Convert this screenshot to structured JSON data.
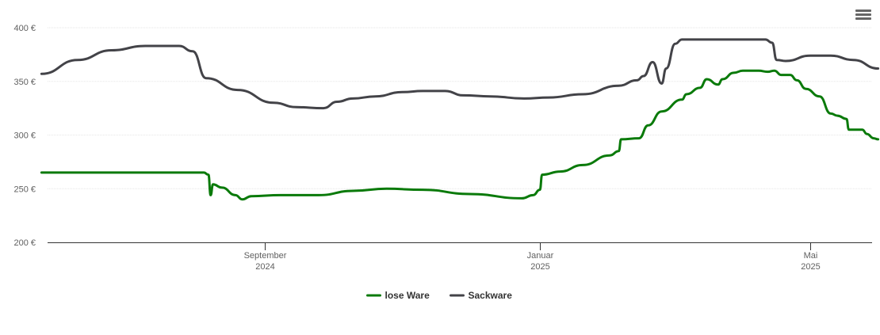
{
  "chart_data": {
    "type": "line",
    "title": "",
    "xlabel": "",
    "ylabel": "",
    "ylim": [
      200,
      400
    ],
    "y_ticks": [
      {
        "value": 200,
        "label": "200 €"
      },
      {
        "value": 250,
        "label": "250 €"
      },
      {
        "value": 300,
        "label": "300 €"
      },
      {
        "value": 350,
        "label": "350 €"
      },
      {
        "value": 400,
        "label": "400 €"
      }
    ],
    "x_range": [
      "2024-05-25",
      "2025-05-31"
    ],
    "x_ticks": [
      {
        "date": "2024-09-01",
        "label": "September",
        "sublabel": "2024"
      },
      {
        "date": "2025-01-01",
        "label": "Januar",
        "sublabel": "2025"
      },
      {
        "date": "2025-05-01",
        "label": "Mai",
        "sublabel": "2025"
      }
    ],
    "grid": true,
    "legend_position": "bottom-center",
    "series": [
      {
        "name": "lose Ware",
        "color": "#0a7a0a",
        "points": [
          [
            "2024-05-25",
            265
          ],
          [
            "2024-08-05",
            265
          ],
          [
            "2024-08-07",
            263
          ],
          [
            "2024-08-08",
            244
          ],
          [
            "2024-08-09",
            254
          ],
          [
            "2024-08-13",
            251
          ],
          [
            "2024-08-19",
            244
          ],
          [
            "2024-08-22",
            240
          ],
          [
            "2024-08-26",
            243
          ],
          [
            "2024-09-08",
            244
          ],
          [
            "2024-09-25",
            244
          ],
          [
            "2024-10-10",
            248
          ],
          [
            "2024-10-25",
            250
          ],
          [
            "2024-11-10",
            249
          ],
          [
            "2024-12-01",
            245
          ],
          [
            "2024-12-24",
            241
          ],
          [
            "2024-12-29",
            244
          ],
          [
            "2025-01-01",
            249
          ],
          [
            "2025-01-02",
            263
          ],
          [
            "2025-01-10",
            266
          ],
          [
            "2025-01-20",
            272
          ],
          [
            "2025-02-01",
            281
          ],
          [
            "2025-02-05",
            285
          ],
          [
            "2025-02-06",
            296
          ],
          [
            "2025-02-14",
            297
          ],
          [
            "2025-02-18",
            309
          ],
          [
            "2025-02-24",
            322
          ],
          [
            "2025-03-05",
            333
          ],
          [
            "2025-03-07",
            338
          ],
          [
            "2025-03-13",
            344
          ],
          [
            "2025-03-16",
            352
          ],
          [
            "2025-03-21",
            347
          ],
          [
            "2025-03-23",
            352
          ],
          [
            "2025-03-28",
            358
          ],
          [
            "2025-04-01",
            360
          ],
          [
            "2025-04-08",
            360
          ],
          [
            "2025-04-12",
            359
          ],
          [
            "2025-04-15",
            360
          ],
          [
            "2025-04-18",
            356
          ],
          [
            "2025-04-22",
            356
          ],
          [
            "2025-04-25",
            351
          ],
          [
            "2025-04-29",
            343
          ],
          [
            "2025-05-05",
            336
          ],
          [
            "2025-05-10",
            320
          ],
          [
            "2025-05-13",
            318
          ],
          [
            "2025-05-17",
            315
          ],
          [
            "2025-05-18",
            305
          ],
          [
            "2025-05-19",
            305
          ],
          [
            "2025-05-24",
            305
          ],
          [
            "2025-05-26",
            301
          ],
          [
            "2025-05-29",
            297
          ],
          [
            "2025-05-31",
            296
          ]
        ]
      },
      {
        "name": "Sackware",
        "color": "#434348",
        "points": [
          [
            "2024-05-25",
            357
          ],
          [
            "2024-06-10",
            370
          ],
          [
            "2024-06-25",
            379
          ],
          [
            "2024-07-10",
            383
          ],
          [
            "2024-07-25",
            383
          ],
          [
            "2024-07-31",
            378
          ],
          [
            "2024-08-06",
            353
          ],
          [
            "2024-08-20",
            342
          ],
          [
            "2024-09-05",
            330
          ],
          [
            "2024-09-15",
            326
          ],
          [
            "2024-09-27",
            325
          ],
          [
            "2024-10-03",
            331
          ],
          [
            "2024-10-10",
            334
          ],
          [
            "2024-10-20",
            336
          ],
          [
            "2024-11-01",
            340
          ],
          [
            "2024-11-10",
            341
          ],
          [
            "2024-11-20",
            341
          ],
          [
            "2024-11-28",
            337
          ],
          [
            "2024-12-10",
            336
          ],
          [
            "2024-12-25",
            334
          ],
          [
            "2025-01-05",
            335
          ],
          [
            "2025-01-20",
            338
          ],
          [
            "2025-02-05",
            346
          ],
          [
            "2025-02-13",
            351
          ],
          [
            "2025-02-16",
            355
          ],
          [
            "2025-02-20",
            368
          ],
          [
            "2025-02-24",
            348
          ],
          [
            "2025-02-26",
            362
          ],
          [
            "2025-03-02",
            385
          ],
          [
            "2025-03-05",
            389
          ],
          [
            "2025-03-31",
            389
          ],
          [
            "2025-04-11",
            389
          ],
          [
            "2025-04-14",
            386
          ],
          [
            "2025-04-16",
            370
          ],
          [
            "2025-04-20",
            369
          ],
          [
            "2025-05-01",
            374
          ],
          [
            "2025-05-10",
            374
          ],
          [
            "2025-05-20",
            370
          ],
          [
            "2025-05-31",
            362
          ]
        ]
      }
    ]
  }
}
